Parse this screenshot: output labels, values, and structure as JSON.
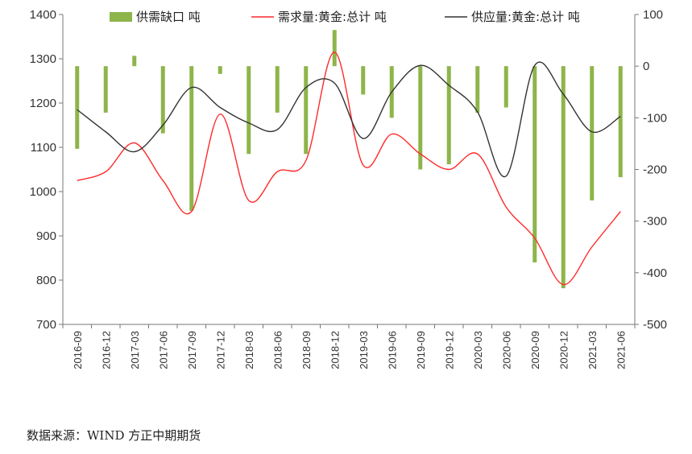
{
  "chart_data": {
    "type": "bar+line",
    "categories": [
      "2016-09",
      "2016-12",
      "2017-03",
      "2017-06",
      "2017-09",
      "2017-12",
      "2018-03",
      "2018-06",
      "2018-09",
      "2018-12",
      "2019-03",
      "2019-06",
      "2019-09",
      "2019-12",
      "2020-03",
      "2020-06",
      "2020-09",
      "2020-12",
      "2021-03",
      "2021-06"
    ],
    "series": [
      {
        "name": "供需缺口 吨",
        "type": "bar",
        "axis": "right",
        "color": "#8DB54A",
        "values": [
          -160,
          -90,
          20,
          -130,
          -280,
          -15,
          -170,
          -90,
          -170,
          70,
          -55,
          -100,
          -200,
          -190,
          -90,
          -80,
          -380,
          -430,
          -260,
          -215
        ]
      },
      {
        "name": "需求量:黄金:总计 吨",
        "type": "line",
        "axis": "left",
        "color": "#FF2A2A",
        "values": [
          1025,
          1045,
          1110,
          1025,
          955,
          1175,
          980,
          1045,
          1070,
          1315,
          1060,
          1130,
          1085,
          1050,
          1085,
          965,
          895,
          790,
          875,
          955
        ]
      },
      {
        "name": "供应量:黄金:总计 吨",
        "type": "line",
        "axis": "left",
        "color": "#333333",
        "values": [
          1185,
          1135,
          1090,
          1150,
          1235,
          1190,
          1155,
          1140,
          1235,
          1245,
          1120,
          1225,
          1285,
          1240,
          1180,
          1035,
          1285,
          1220,
          1135,
          1170
        ]
      }
    ],
    "y_left": {
      "min": 700,
      "max": 1400,
      "ticks": [
        700,
        800,
        900,
        1000,
        1100,
        1200,
        1300,
        1400
      ]
    },
    "y_right": {
      "min": -500,
      "max": 100,
      "ticks": [
        -500,
        -400,
        -300,
        -200,
        -100,
        0,
        100
      ]
    },
    "legend_position": "top",
    "grid": false
  },
  "source_text": "数据来源：WIND  方正中期期货"
}
